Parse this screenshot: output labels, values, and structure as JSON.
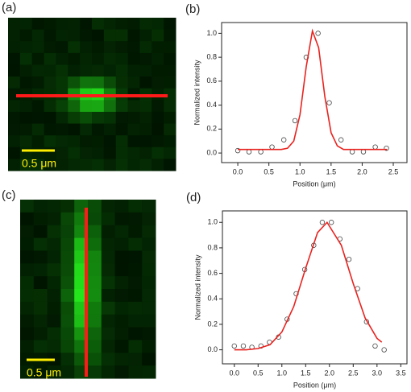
{
  "panels": [
    {
      "label": "(a)",
      "scale_bar": "0.5 μm"
    },
    {
      "label": "(c)",
      "scale_bar": "0.5 μm"
    }
  ],
  "chart_data": [
    {
      "type": "scatter",
      "label": "(b)",
      "x_label": "Position (μm)",
      "y_label": "Normalized intensity",
      "xlim": [
        -0.26,
        2.72
      ],
      "ylim": [
        -0.08,
        1.09
      ],
      "xticks": [
        {
          "value": 0,
          "label": "0.0"
        },
        {
          "value": 0.5,
          "label": "0.5"
        },
        {
          "value": 1,
          "label": "1.0"
        },
        {
          "value": 1.5,
          "label": "1.5"
        },
        {
          "value": 2,
          "label": "2.0"
        },
        {
          "value": 2.5,
          "label": "2.5"
        }
      ],
      "yticks": [
        {
          "value": 0,
          "label": "0.0"
        },
        {
          "value": 0.2,
          "label": "0.2"
        },
        {
          "value": 0.4,
          "label": "0.4"
        },
        {
          "value": 0.6,
          "label": "0.6"
        },
        {
          "value": 0.8,
          "label": "0.8"
        },
        {
          "value": 1,
          "label": "1.0"
        }
      ],
      "series": [
        {
          "style": "markers",
          "color": "#444444",
          "x": [
            0,
            0.18,
            0.37,
            0.55,
            0.74,
            0.92,
            1.1,
            1.29,
            1.47,
            1.66,
            1.84,
            2.02,
            2.21,
            2.39
          ],
          "values": [
            0.02,
            0.01,
            0.01,
            0.05,
            0.11,
            0.27,
            0.8,
            1.0,
            0.42,
            0.11,
            0.01,
            0.01,
            0.05,
            0.04
          ]
        },
        {
          "style": "line",
          "color": "#e8231f",
          "x": [
            0,
            0.5,
            0.7,
            0.8,
            0.9,
            1.0,
            1.1,
            1.2,
            1.3,
            1.4,
            1.5,
            1.6,
            1.7,
            2.4
          ],
          "values": [
            0.03,
            0.03,
            0.03,
            0.04,
            0.1,
            0.32,
            0.72,
            1.02,
            0.88,
            0.47,
            0.17,
            0.06,
            0.03,
            0.03
          ]
        }
      ]
    },
    {
      "type": "scatter",
      "label": "(d)",
      "x_label": "Position (μm)",
      "y_label": "Normalized intensity",
      "xlim": [
        -0.25,
        3.63
      ],
      "ylim": [
        -0.11,
        1.09
      ],
      "xticks": [
        {
          "value": 0,
          "label": "0.0"
        },
        {
          "value": 0.5,
          "label": "0.5"
        },
        {
          "value": 1,
          "label": "1.0"
        },
        {
          "value": 1.5,
          "label": "1.5"
        },
        {
          "value": 2,
          "label": "2.0"
        },
        {
          "value": 2.5,
          "label": "2.5"
        },
        {
          "value": 3,
          "label": "3.0"
        },
        {
          "value": 3.5,
          "label": "3.5"
        }
      ],
      "yticks": [
        {
          "value": 0,
          "label": "0.0"
        },
        {
          "value": 0.2,
          "label": "0.2"
        },
        {
          "value": 0.4,
          "label": "0.4"
        },
        {
          "value": 0.6,
          "label": "0.6"
        },
        {
          "value": 0.8,
          "label": "0.8"
        },
        {
          "value": 1,
          "label": "1.0"
        }
      ],
      "series": [
        {
          "style": "markers",
          "color": "#444444",
          "x": [
            0,
            0.19,
            0.37,
            0.56,
            0.74,
            0.93,
            1.11,
            1.3,
            1.48,
            1.67,
            1.85,
            2.04,
            2.22,
            2.41,
            2.59,
            2.78,
            2.96,
            3.15
          ],
          "values": [
            0.03,
            0.03,
            0.02,
            0.03,
            0.06,
            0.1,
            0.24,
            0.44,
            0.63,
            0.82,
            1.0,
            1.0,
            0.87,
            0.71,
            0.48,
            0.22,
            0.03,
            0.0
          ]
        },
        {
          "style": "line",
          "color": "#e8231f",
          "x": [
            0,
            0.25,
            0.5,
            0.75,
            1.0,
            1.25,
            1.5,
            1.75,
            1.95,
            2.25,
            2.5,
            2.75,
            3.0,
            3.1
          ],
          "values": [
            0.0,
            0.0,
            0.01,
            0.04,
            0.14,
            0.34,
            0.64,
            0.92,
            1.0,
            0.82,
            0.52,
            0.25,
            0.09,
            0.06
          ]
        }
      ]
    }
  ]
}
